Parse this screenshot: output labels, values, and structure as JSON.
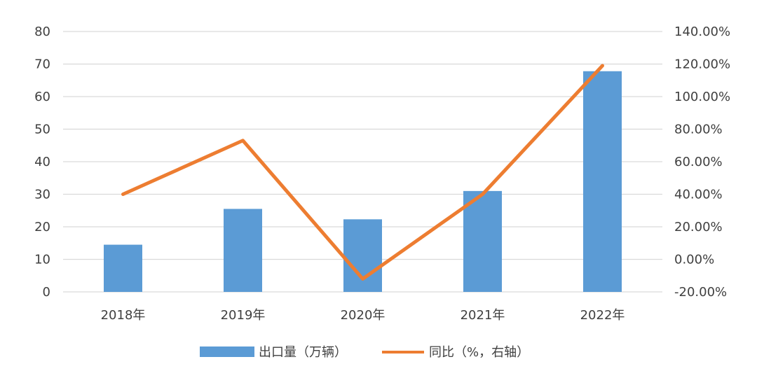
{
  "chart_data": {
    "type": "bar",
    "categories": [
      "2018年",
      "2019年",
      "2020年",
      "2021年",
      "2022年"
    ],
    "series": [
      {
        "name": "出口量（万辆）",
        "type": "bar",
        "axis": "left",
        "color": "#5B9BD5",
        "values": [
          14.5,
          25.5,
          22.3,
          31.0,
          67.8
        ]
      },
      {
        "name": "同比（%，右轴）",
        "type": "line",
        "axis": "right",
        "color": "#ED7D31",
        "values": [
          40.0,
          73.0,
          -12.0,
          40.0,
          119.0
        ]
      }
    ],
    "y_left": {
      "ylim": [
        0,
        80
      ],
      "ticks": [
        "0",
        "10",
        "20",
        "30",
        "40",
        "50",
        "60",
        "70",
        "80"
      ]
    },
    "y_right": {
      "ylim": [
        -20,
        140
      ],
      "ticks": [
        "-20.00%",
        "0.00%",
        "20.00%",
        "40.00%",
        "60.00%",
        "80.00%",
        "100.00%",
        "120.00%",
        "140.00%"
      ]
    },
    "grid": true,
    "legend_position": "bottom",
    "gridline_color": "#d9d9d9"
  }
}
